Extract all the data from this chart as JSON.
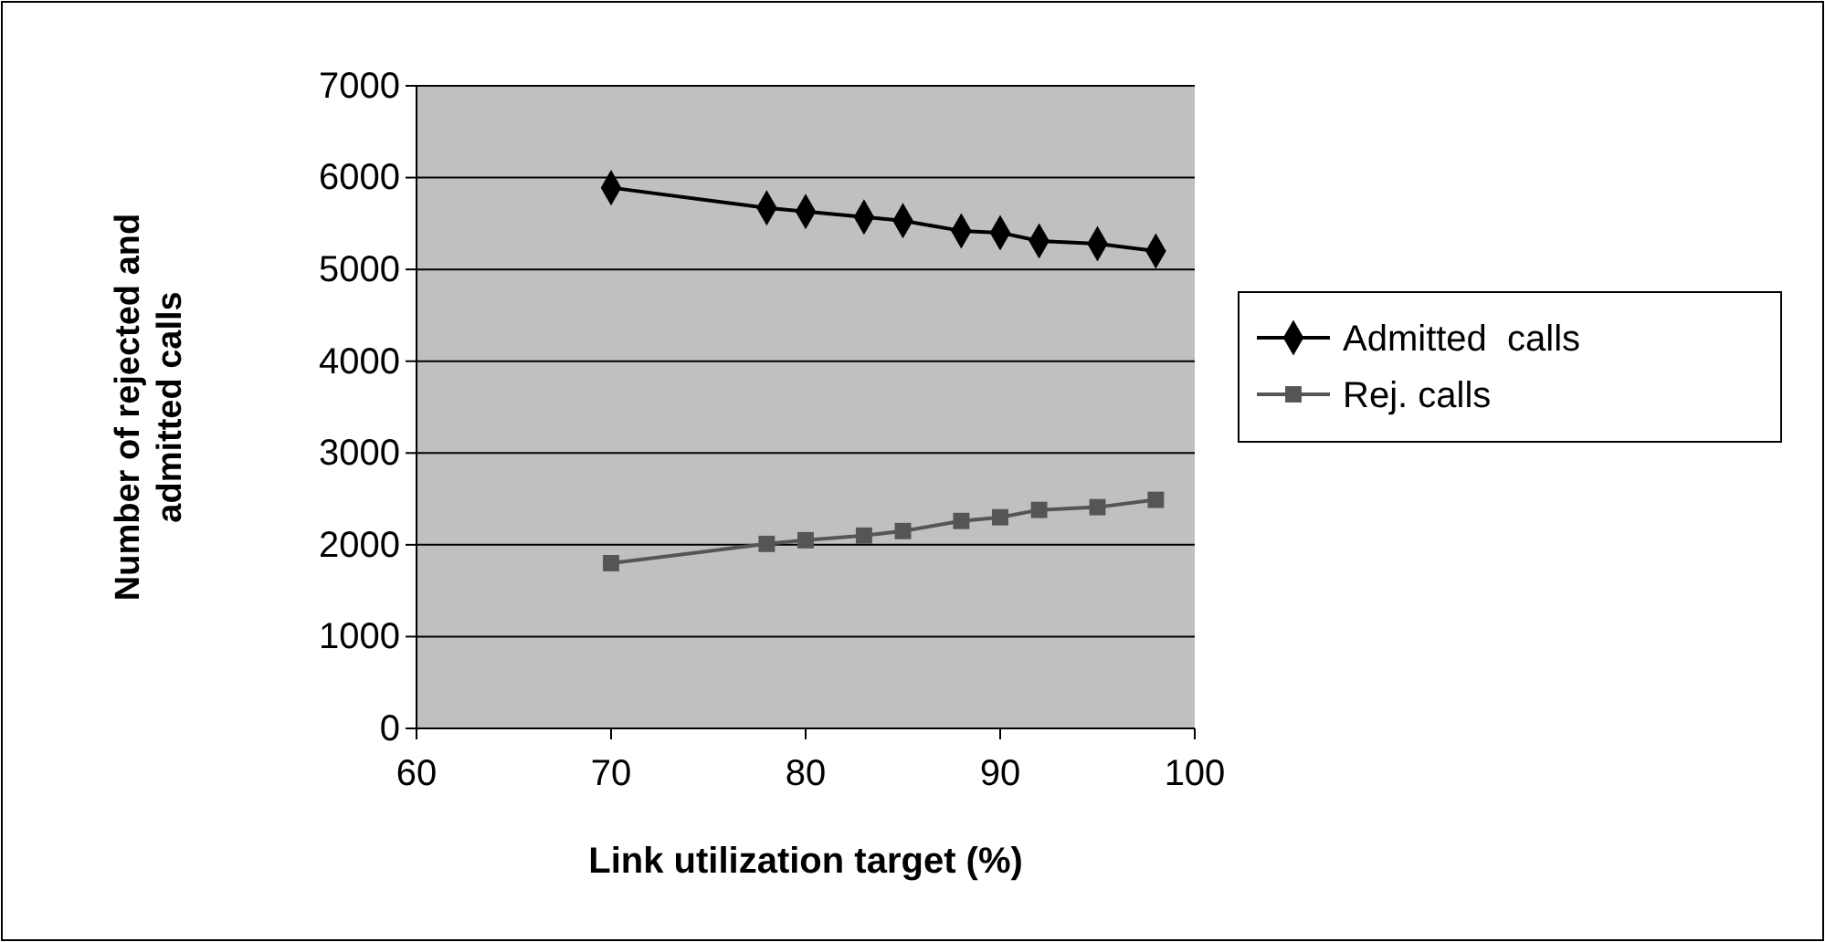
{
  "chart_data": {
    "type": "line",
    "xlabel": "Link utilization target (%)",
    "ylabel": "Number of rejected and admitted calls",
    "x": [
      70,
      78,
      80,
      83,
      85,
      88,
      90,
      92,
      95,
      98
    ],
    "series": [
      {
        "name": "Admitted  calls",
        "color": "#000000",
        "marker": "diamond",
        "values": [
          5890,
          5670,
          5630,
          5570,
          5530,
          5420,
          5400,
          5310,
          5280,
          5200
        ]
      },
      {
        "name": "Rej. calls",
        "color": "#555555",
        "marker": "square",
        "values": [
          1800,
          2010,
          2050,
          2100,
          2150,
          2260,
          2300,
          2380,
          2410,
          2490
        ]
      }
    ],
    "xlim": [
      60,
      100
    ],
    "xticks": [
      60,
      70,
      80,
      90,
      100
    ],
    "ylim": [
      0,
      7000
    ],
    "yticks": [
      0,
      1000,
      2000,
      3000,
      4000,
      5000,
      6000,
      7000
    ],
    "grid": "y",
    "legend": "right"
  }
}
